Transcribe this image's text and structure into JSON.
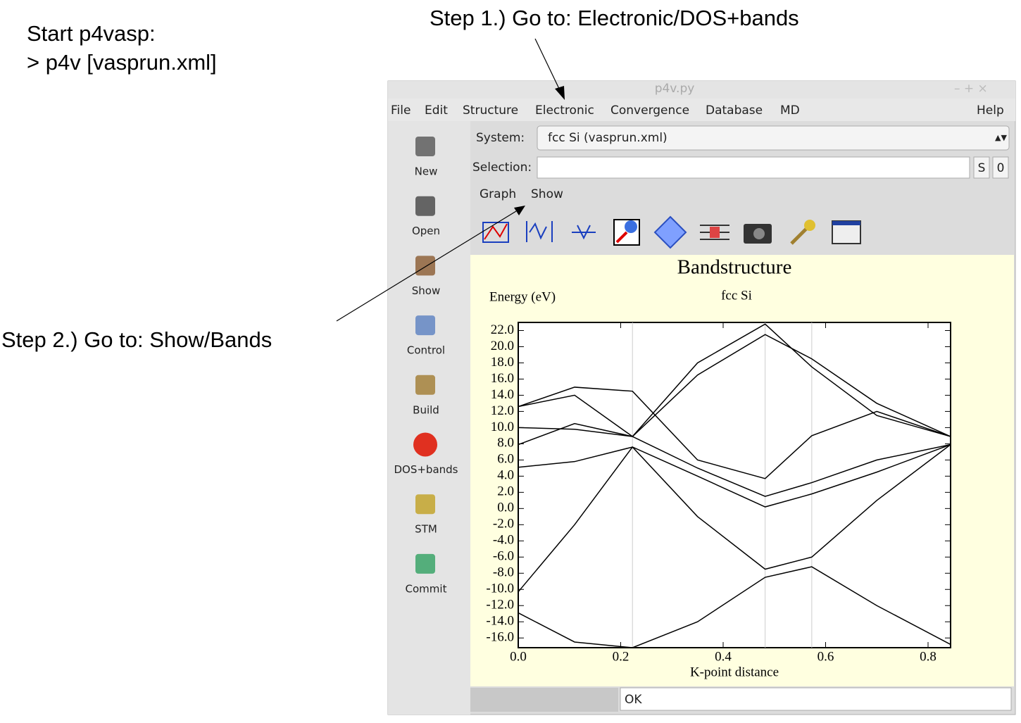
{
  "annotations": {
    "start": "Start p4vasp:",
    "command": "> p4v [vasprun.xml]",
    "step1": "Step 1.) Go to: Electronic/DOS+bands",
    "step2": "Step 2.) Go to: Show/Bands"
  },
  "window": {
    "title": "p4v.py",
    "menu": [
      "File",
      "Edit",
      "Structure",
      "Electronic",
      "Convergence",
      "Database",
      "MD"
    ],
    "help": "Help",
    "toolbar": [
      "New",
      "Open",
      "Show",
      "Control",
      "Build",
      "DOS+bands",
      "STM",
      "Commit"
    ],
    "system_label": "System:",
    "system_value": "fcc Si (vasprun.xml)",
    "selection_label": "Selection:",
    "selection_buttons": [
      "S",
      "0"
    ],
    "submenu": [
      "Graph",
      "Show"
    ],
    "status": "OK"
  },
  "chart_data": {
    "type": "line",
    "title": "Bandstructure",
    "subtitle": "fcc Si",
    "ylabel": "Energy (eV)",
    "xlabel": "K-point distance",
    "color": "#000000",
    "x": [
      0,
      0.11,
      0.223,
      0.35,
      0.482,
      0.573,
      0.7,
      0.844
    ],
    "series": [
      {
        "values": [
          -12.9,
          -16.5,
          -17.2,
          -14.0,
          -8.5,
          -7.2,
          -12.0,
          -16.8
        ]
      },
      {
        "values": [
          -10.3,
          -2.0,
          7.6,
          -1.0,
          -7.5,
          -6.0,
          1.0,
          7.9
        ]
      },
      {
        "values": [
          5.1,
          5.8,
          7.6,
          4.0,
          0.2,
          1.8,
          4.5,
          7.9
        ]
      },
      {
        "values": [
          7.9,
          10.5,
          8.9,
          5.0,
          1.5,
          3.2,
          6.0,
          7.9
        ]
      },
      {
        "values": [
          10.0,
          9.8,
          8.9,
          16.5,
          21.5,
          18.5,
          13.0,
          8.9
        ]
      },
      {
        "values": [
          12.6,
          15.0,
          14.5,
          6.0,
          3.7,
          9.0,
          12.0,
          8.9
        ]
      },
      {
        "values": [
          12.6,
          14.0,
          8.9,
          18.0,
          22.8,
          17.5,
          11.5,
          8.9
        ]
      }
    ],
    "vlines": [
      0.223,
      0.482,
      0.573
    ],
    "xlim": [
      0,
      0.844
    ],
    "ylim": [
      -17.2,
      23.0
    ],
    "xticks": [
      {
        "value": 0,
        "label": "0.0"
      },
      {
        "value": 0.2,
        "label": "0.2"
      },
      {
        "value": 0.4,
        "label": "0.4"
      },
      {
        "value": 0.6,
        "label": "0.6"
      },
      {
        "value": 0.8,
        "label": "0.8"
      }
    ],
    "yticks": [
      {
        "value": 22,
        "label": "22.0"
      },
      {
        "value": 20,
        "label": "20.0"
      },
      {
        "value": 18,
        "label": "18.0"
      },
      {
        "value": 16,
        "label": "16.0"
      },
      {
        "value": 14,
        "label": "14.0"
      },
      {
        "value": 12,
        "label": "12.0"
      },
      {
        "value": 10,
        "label": "10.0"
      },
      {
        "value": 8,
        "label": "8.0"
      },
      {
        "value": 6,
        "label": "6.0"
      },
      {
        "value": 4,
        "label": "4.0"
      },
      {
        "value": 2,
        "label": "2.0"
      },
      {
        "value": 0,
        "label": "0.0"
      },
      {
        "value": -2,
        "label": "-2.0"
      },
      {
        "value": -4,
        "label": "-4.0"
      },
      {
        "value": -6,
        "label": "-6.0"
      },
      {
        "value": -8,
        "label": "-8.0"
      },
      {
        "value": -10,
        "label": "-10.0"
      },
      {
        "value": -12,
        "label": "-12.0"
      },
      {
        "value": -14,
        "label": "-14.0"
      },
      {
        "value": -16,
        "label": "-16.0"
      }
    ]
  }
}
